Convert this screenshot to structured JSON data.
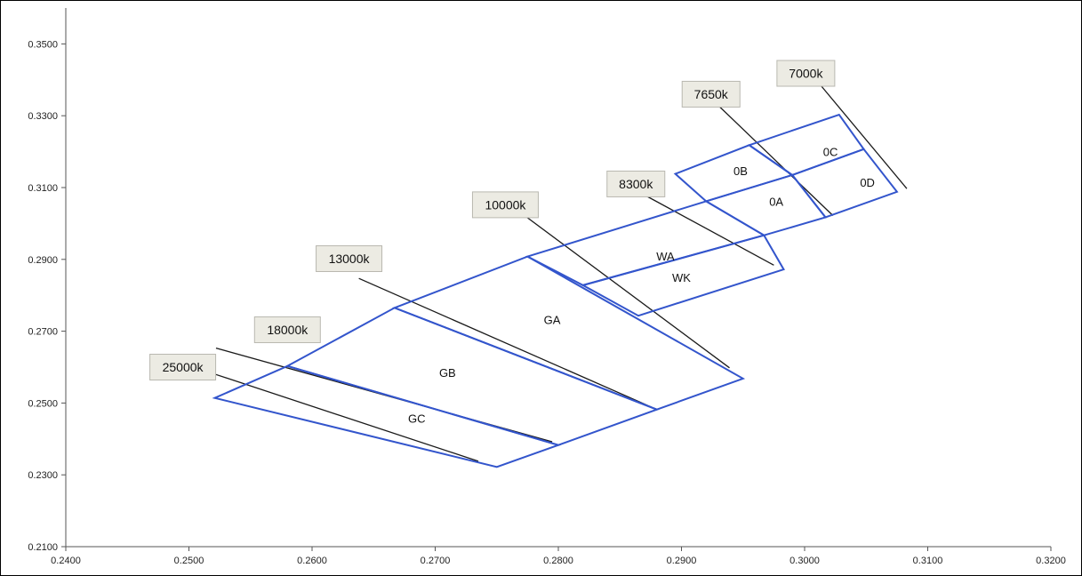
{
  "chart_data": {
    "type": "scatter",
    "xlim": [
      0.24,
      0.32
    ],
    "ylim": [
      0.21,
      0.36
    ],
    "x_ticks": [
      "0.2400",
      "0.2500",
      "0.2600",
      "0.2700",
      "0.2800",
      "0.2900",
      "0.3000",
      "0.3100",
      "0.3200"
    ],
    "y_ticks": [
      "0.2100",
      "0.2300",
      "0.2500",
      "0.2700",
      "0.2900",
      "0.3100",
      "0.3300",
      "0.3500"
    ],
    "grid": false,
    "bins": [
      {
        "name": "GC",
        "points": [
          [
            0.2521,
            0.2514
          ],
          [
            0.258,
            0.2603
          ],
          [
            0.28,
            0.2383
          ],
          [
            0.275,
            0.2322
          ]
        ]
      },
      {
        "name": "GB",
        "points": [
          [
            0.258,
            0.2603
          ],
          [
            0.2667,
            0.2765
          ],
          [
            0.288,
            0.2482
          ],
          [
            0.28,
            0.2383
          ]
        ]
      },
      {
        "name": "GA",
        "points": [
          [
            0.2667,
            0.2765
          ],
          [
            0.2775,
            0.2908
          ],
          [
            0.295,
            0.2568
          ],
          [
            0.288,
            0.2482
          ]
        ]
      },
      {
        "name": "WA",
        "points": [
          [
            0.2775,
            0.2908
          ],
          [
            0.292,
            0.3062
          ],
          [
            0.2967,
            0.2967
          ],
          [
            0.282,
            0.2828
          ]
        ]
      },
      {
        "name": "WK",
        "points": [
          [
            0.282,
            0.2828
          ],
          [
            0.2967,
            0.2967
          ],
          [
            0.2983,
            0.2872
          ],
          [
            0.2865,
            0.2743
          ]
        ]
      },
      {
        "name": "0B",
        "points": [
          [
            0.2895,
            0.3138
          ],
          [
            0.2955,
            0.3218
          ],
          [
            0.299,
            0.3135
          ],
          [
            0.292,
            0.3062
          ]
        ]
      },
      {
        "name": "0A",
        "points": [
          [
            0.292,
            0.3062
          ],
          [
            0.299,
            0.3135
          ],
          [
            0.3017,
            0.3017
          ],
          [
            0.2967,
            0.2967
          ]
        ]
      },
      {
        "name": "0C",
        "points": [
          [
            0.2955,
            0.3218
          ],
          [
            0.3028,
            0.3303
          ],
          [
            0.3048,
            0.3207
          ],
          [
            0.299,
            0.3135
          ]
        ]
      },
      {
        "name": "0D",
        "points": [
          [
            0.299,
            0.3135
          ],
          [
            0.3048,
            0.3207
          ],
          [
            0.3075,
            0.3088
          ],
          [
            0.3017,
            0.3017
          ]
        ]
      }
    ],
    "bin_labels": [
      {
        "text": "GC",
        "x": 0.2685,
        "y": 0.2458
      },
      {
        "text": "GB",
        "x": 0.271,
        "y": 0.2585
      },
      {
        "text": "GA",
        "x": 0.2795,
        "y": 0.2733
      },
      {
        "text": "WA",
        "x": 0.2887,
        "y": 0.291
      },
      {
        "text": "WK",
        "x": 0.29,
        "y": 0.285
      },
      {
        "text": "0B",
        "x": 0.2948,
        "y": 0.3147
      },
      {
        "text": "0A",
        "x": 0.2977,
        "y": 0.3062
      },
      {
        "text": "0C",
        "x": 0.3021,
        "y": 0.32
      },
      {
        "text": "0D",
        "x": 0.3051,
        "y": 0.3115
      }
    ],
    "cct_lines": [
      {
        "text": "25000k",
        "box": [
          0.2495,
          0.26
        ],
        "from": [
          0.2517,
          0.2585
        ],
        "to": [
          0.2735,
          0.2338
        ]
      },
      {
        "text": "18000k",
        "box": [
          0.258,
          0.2704
        ],
        "from": [
          0.2522,
          0.2653
        ],
        "to": [
          0.2795,
          0.2392
        ]
      },
      {
        "text": "13000k",
        "box": [
          0.263,
          0.2902
        ],
        "from": [
          0.2638,
          0.2847
        ],
        "to": [
          0.288,
          0.2482
        ]
      },
      {
        "text": "10000k",
        "box": [
          0.2757,
          0.3052
        ],
        "from": [
          0.2771,
          0.3026
        ],
        "to": [
          0.2939,
          0.2598
        ]
      },
      {
        "text": "8300k",
        "box": [
          0.2863,
          0.311
        ],
        "from": [
          0.2868,
          0.3083
        ],
        "to": [
          0.2975,
          0.2884
        ]
      },
      {
        "text": "7650k",
        "box": [
          0.2924,
          0.336
        ],
        "from": [
          0.2931,
          0.3325
        ],
        "to": [
          0.3023,
          0.3022
        ]
      },
      {
        "text": "7000k",
        "box": [
          0.3001,
          0.3418
        ],
        "from": [
          0.3013,
          0.3385
        ],
        "to": [
          0.3083,
          0.3097
        ]
      }
    ]
  },
  "colors": {
    "bin_stroke": "#3355cc",
    "leader": "#1a1a1a",
    "label_box_fill": "#ecebe3",
    "label_box_stroke": "#b9b8b0",
    "axis": "#555555"
  }
}
